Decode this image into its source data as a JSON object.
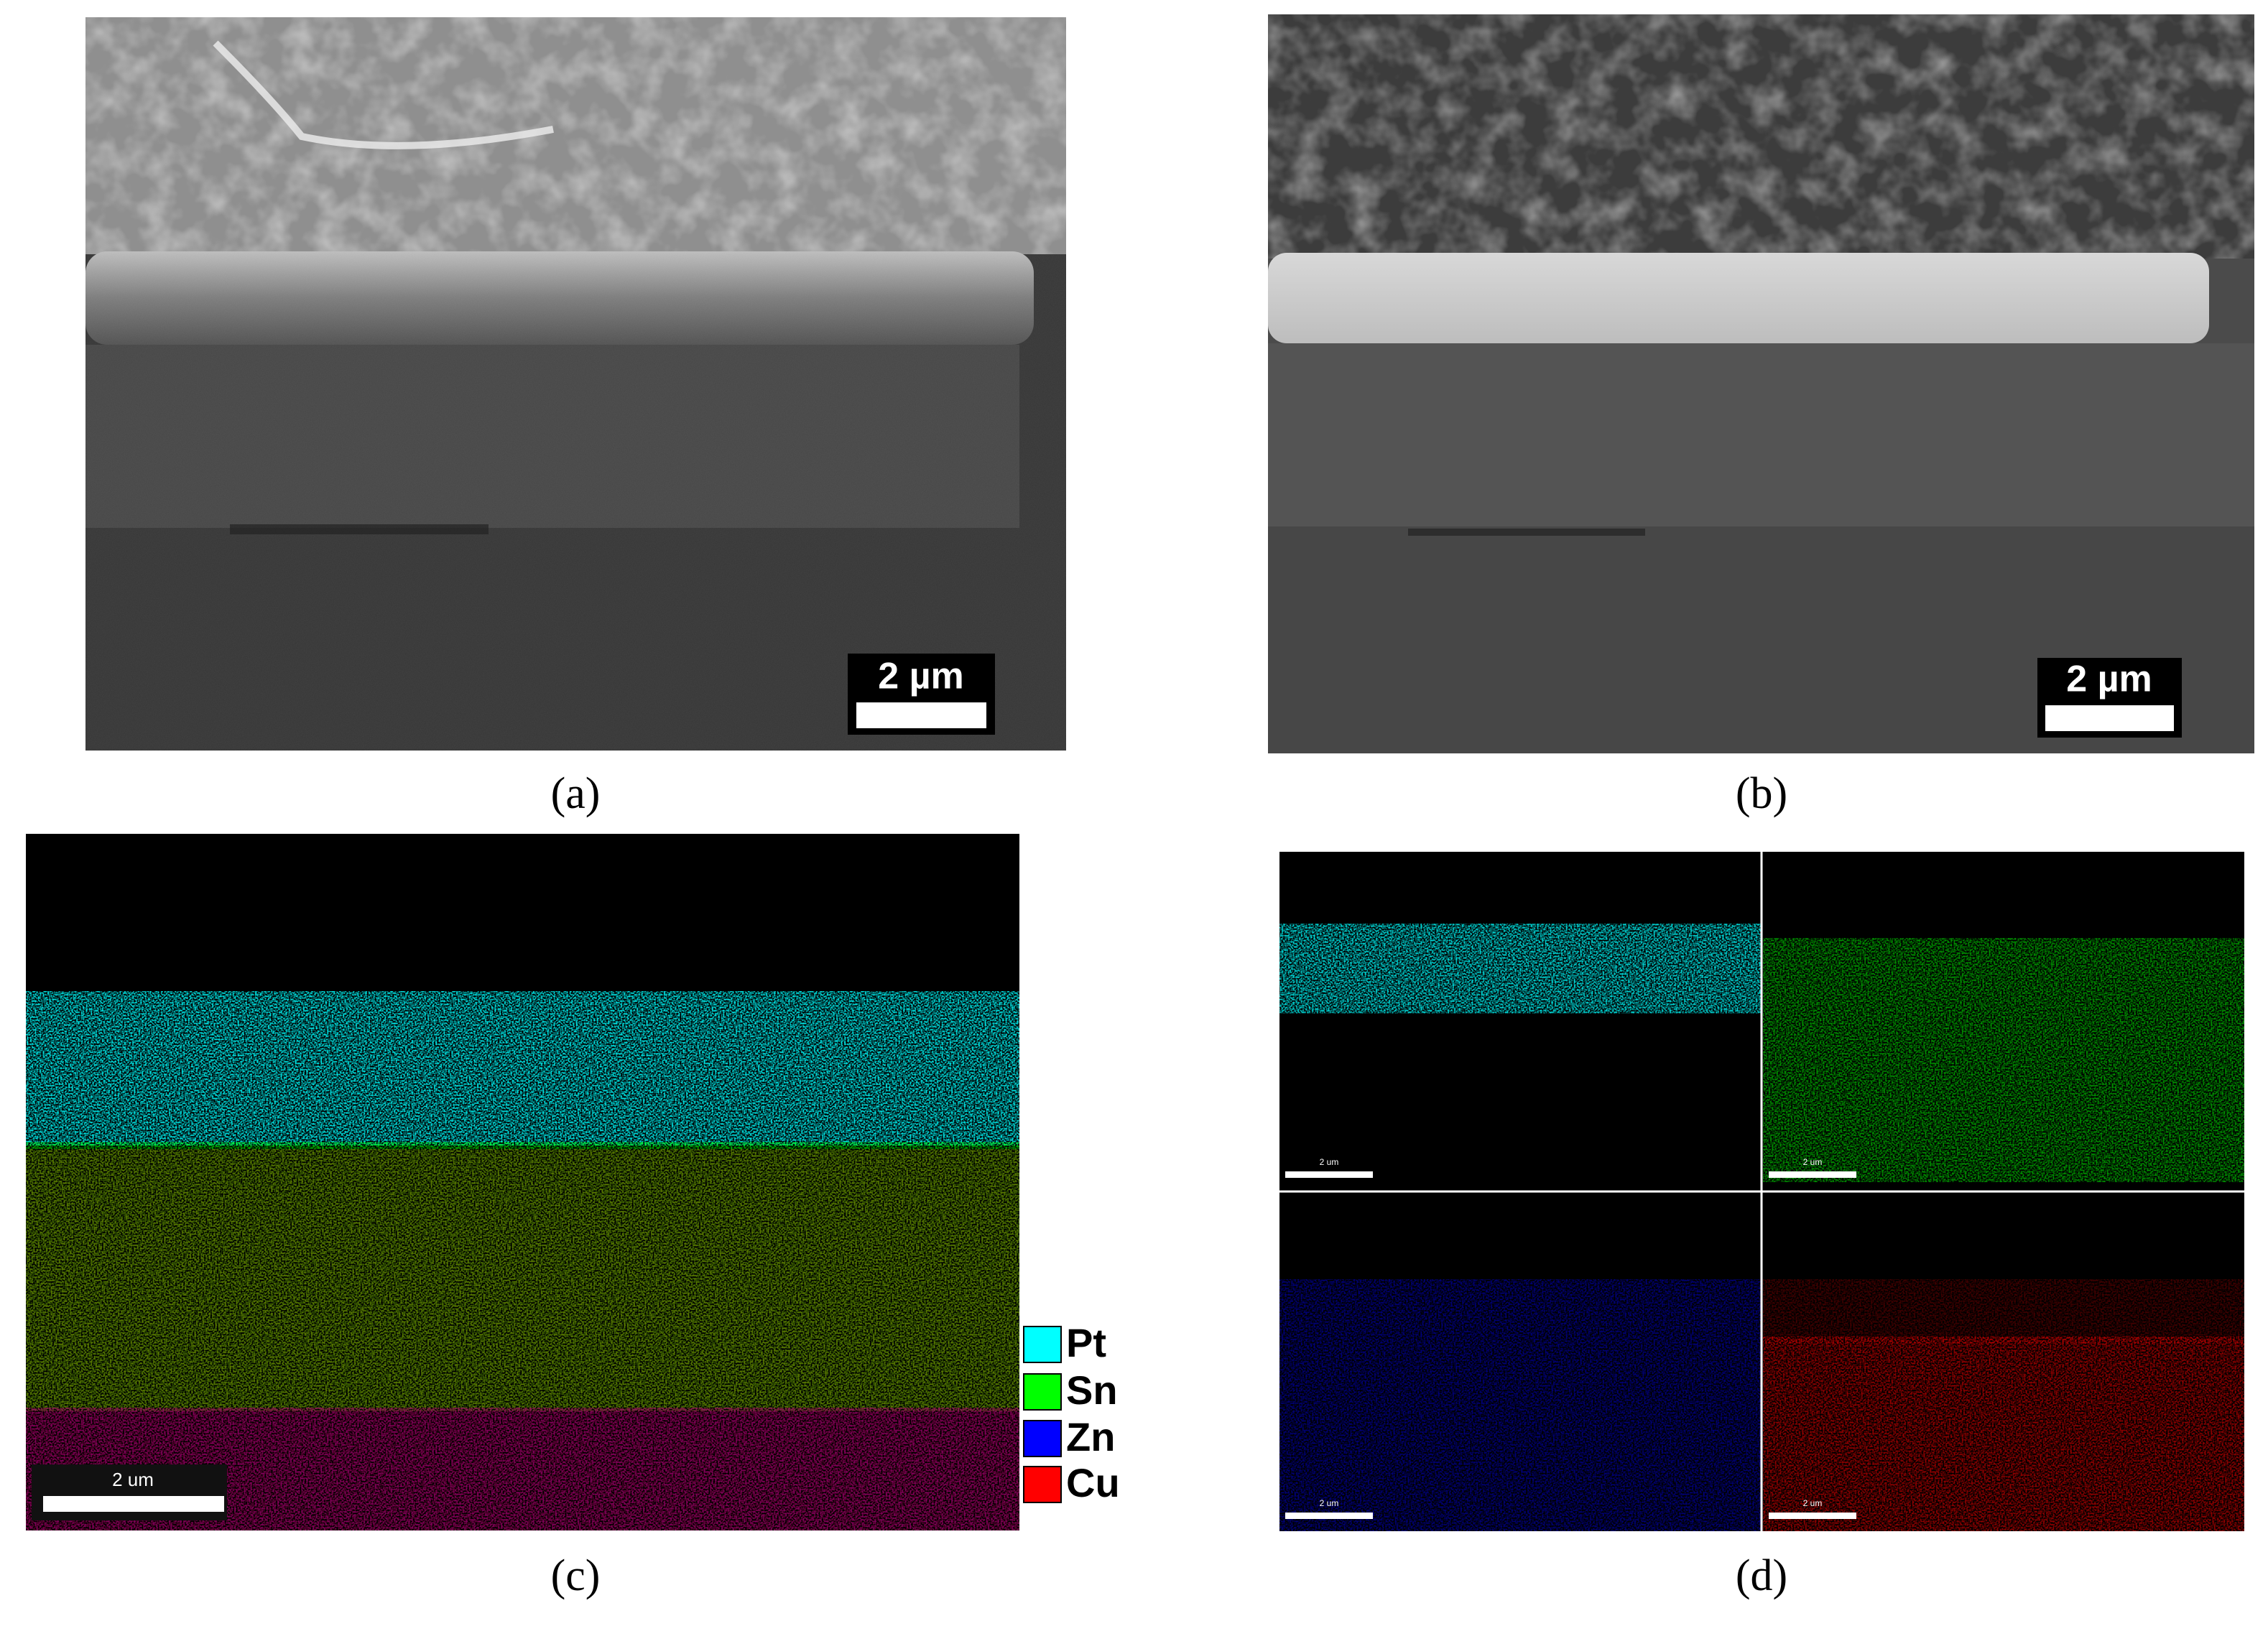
{
  "panels": [
    {
      "label": "(a)",
      "scale_bar": "2 µm"
    },
    {
      "label": "(b)",
      "scale_bar": "2 µm"
    },
    {
      "label": "(c)",
      "scale_bar": "2 um"
    },
    {
      "label": "(d)",
      "scale_bars": [
        "2 um",
        "2 um",
        "2 um",
        "2 um"
      ]
    }
  ],
  "legend": [
    {
      "name": "Pt",
      "color": "#00ffff"
    },
    {
      "name": "Sn",
      "color": "#00ff00"
    },
    {
      "name": "Zn",
      "color": "#0000ff"
    },
    {
      "name": "Cu",
      "color": "#ff0000"
    }
  ]
}
